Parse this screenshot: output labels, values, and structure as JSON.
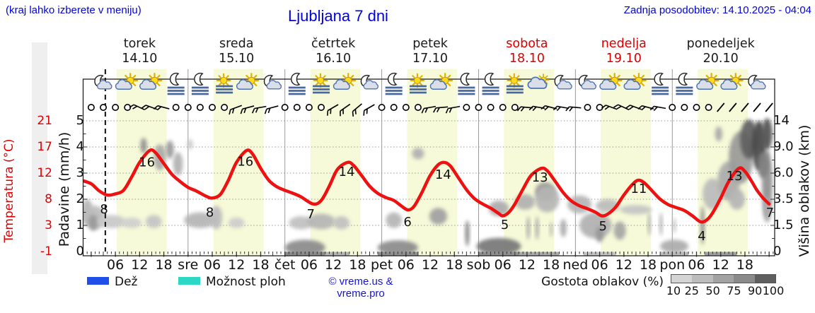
{
  "header": {
    "hint": "(kraj lahko izberete v meniju)",
    "title": "Ljubljana 7 dni",
    "updated": "Zadnja posodobitev: 14.10.2025 - 04:04"
  },
  "days": [
    {
      "name": "torek",
      "date": "14.10",
      "color": "#1a1a1a"
    },
    {
      "name": "sreda",
      "date": "15.10",
      "color": "#1a1a1a"
    },
    {
      "name": "četrtek",
      "date": "16.10",
      "color": "#1a1a1a"
    },
    {
      "name": "petek",
      "date": "17.10",
      "color": "#1a1a1a"
    },
    {
      "name": "sobota",
      "date": "18.10",
      "color": "#dd0000"
    },
    {
      "name": "nedelja",
      "date": "19.10",
      "color": "#dd0000"
    },
    {
      "name": "ponedeljek",
      "date": "20.10",
      "color": "#1a1a1a"
    }
  ],
  "axes": {
    "temperature": {
      "label": "Temperatura (°C)",
      "ticks": [
        "21",
        "17",
        "12",
        "8",
        "3",
        "-1"
      ],
      "color": "#e00000"
    },
    "precipitation": {
      "label": "Padavine (mm/h)",
      "ticks": [
        "5",
        "4",
        "3",
        "2",
        "1",
        "0"
      ]
    },
    "cloud_height": {
      "label": "Višina oblakov (km)",
      "ticks": [
        "14",
        "9.0",
        "6.0",
        "3.5",
        "1.5",
        "0"
      ]
    },
    "time_hours": [
      "06",
      "12",
      "18"
    ],
    "midnight_labels": [
      "sre",
      "čet",
      "pet",
      "sob",
      "ned",
      "pon"
    ],
    "time_ticks": [
      "06",
      "12",
      "18",
      "sre",
      "06",
      "12",
      "18",
      "čet",
      "06",
      "12",
      "18",
      "pet",
      "06",
      "12",
      "18",
      "sob",
      "06",
      "12",
      "18",
      "ned",
      "06",
      "12",
      "18",
      "pon",
      "06",
      "12",
      "18"
    ]
  },
  "legend": {
    "rain_label": "Dež",
    "rain_color": "#1f4fe8",
    "showers_label": "Možnost ploh",
    "showers_color": "#2cd8c4",
    "copyright": "© vreme.us & vreme.pro",
    "density_label": "Gostota oblakov (%)",
    "density_ticks": [
      "10",
      "25",
      "50",
      "75",
      "90",
      "100"
    ],
    "density_colors": [
      "#d4d4d4",
      "#bcbcbc",
      "#a2a2a2",
      "#8a8a8a",
      "#5f5f5f"
    ]
  },
  "chart_data": {
    "type": "line",
    "title": "Ljubljana 7 dni meteogram",
    "x_unit": "hours from torek 14.10 00:00",
    "xlim": [
      -2,
      169.3
    ],
    "ylim_precip": [
      0,
      5
    ],
    "temp_axis_map": "T_celsius = -1 + 4.4 * precip_axis_units",
    "daylight_hours": [
      6.3,
      18.7
    ],
    "now_line_t": 3.5,
    "grid": true,
    "temperature_curve": [
      [
        -2,
        10.9
      ],
      [
        0,
        10.4
      ],
      [
        2,
        9.2
      ],
      [
        4,
        8.5
      ],
      [
        6,
        8.7
      ],
      [
        8,
        9.3
      ],
      [
        10,
        11.5
      ],
      [
        12,
        14
      ],
      [
        14.5,
        16
      ],
      [
        16,
        15.6
      ],
      [
        18,
        13.8
      ],
      [
        20,
        12
      ],
      [
        22,
        10.8
      ],
      [
        24,
        9.8
      ],
      [
        26,
        9.2
      ],
      [
        28.5,
        8.3
      ],
      [
        30,
        8.0
      ],
      [
        32,
        8.6
      ],
      [
        34,
        11
      ],
      [
        36,
        14
      ],
      [
        38.5,
        16
      ],
      [
        40,
        15.4
      ],
      [
        42,
        13
      ],
      [
        44,
        11
      ],
      [
        46,
        9.9
      ],
      [
        48,
        9.3
      ],
      [
        50,
        8.8
      ],
      [
        52,
        8.2
      ],
      [
        55,
        7.0
      ],
      [
        57,
        7.6
      ],
      [
        59,
        10
      ],
      [
        61,
        12.8
      ],
      [
        63.5,
        14
      ],
      [
        65,
        13.5
      ],
      [
        67,
        11.8
      ],
      [
        69,
        10
      ],
      [
        71,
        8.8
      ],
      [
        73,
        8.1
      ],
      [
        75,
        7.6
      ],
      [
        77,
        6.6
      ],
      [
        78.5,
        6.0
      ],
      [
        80,
        6.6
      ],
      [
        82,
        9
      ],
      [
        84,
        11.8
      ],
      [
        86,
        13.6
      ],
      [
        87.5,
        14
      ],
      [
        89,
        13.4
      ],
      [
        91,
        11.4
      ],
      [
        93,
        9.4
      ],
      [
        95,
        7.9
      ],
      [
        97,
        7.0
      ],
      [
        99,
        6.3
      ],
      [
        101,
        5.4
      ],
      [
        102,
        5.0
      ],
      [
        103.5,
        5.6
      ],
      [
        105,
        7
      ],
      [
        107,
        9.5
      ],
      [
        109,
        11.8
      ],
      [
        111.5,
        13
      ],
      [
        113,
        12.6
      ],
      [
        115,
        10.8
      ],
      [
        117,
        8.9
      ],
      [
        119,
        7.5
      ],
      [
        121,
        6.7
      ],
      [
        123,
        6.2
      ],
      [
        125,
        5.6
      ],
      [
        126.5,
        5.0
      ],
      [
        128,
        5.3
      ],
      [
        130,
        6.5
      ],
      [
        132,
        8.5
      ],
      [
        134,
        10.2
      ],
      [
        135.5,
        11
      ],
      [
        137,
        10.6
      ],
      [
        139,
        9.2
      ],
      [
        141,
        7.8
      ],
      [
        143,
        6.9
      ],
      [
        145,
        6.4
      ],
      [
        147,
        5.9
      ],
      [
        149,
        5.0
      ],
      [
        151,
        4.0
      ],
      [
        152.5,
        4.3
      ],
      [
        154,
        5.5
      ],
      [
        156,
        8
      ],
      [
        158,
        10.8
      ],
      [
        160.5,
        13
      ],
      [
        162,
        12.5
      ],
      [
        163.5,
        11
      ],
      [
        165,
        9.3
      ],
      [
        166.5,
        8.0
      ],
      [
        168,
        7.0
      ]
    ],
    "temp_point_labels": [
      {
        "t": 3.2,
        "v": 1.62,
        "text": "8"
      },
      {
        "t": 13.8,
        "v": 3.42,
        "text": "16"
      },
      {
        "t": 29.4,
        "v": 1.5,
        "text": "16_low_8",
        "label": "8"
      },
      {
        "t": 38.2,
        "v": 3.45,
        "text": "16"
      },
      {
        "t": 54.4,
        "v": 1.43,
        "text": "7"
      },
      {
        "t": 63.3,
        "v": 3.05,
        "text": "14"
      },
      {
        "t": 78.4,
        "v": 1.14,
        "text": "6"
      },
      {
        "t": 87.2,
        "v": 2.95,
        "text": "14"
      },
      {
        "t": 102.5,
        "v": 1.03,
        "text": "5"
      },
      {
        "t": 111.2,
        "v": 2.84,
        "text": "13"
      },
      {
        "t": 126.8,
        "v": 0.97,
        "text": "5"
      },
      {
        "t": 135.7,
        "v": 2.4,
        "text": "11"
      },
      {
        "t": 151.3,
        "v": 0.6,
        "text": "4"
      },
      {
        "t": 159.4,
        "v": 2.89,
        "text": "13"
      },
      {
        "t": 168.2,
        "v": 1.48,
        "text": "7"
      }
    ],
    "weather_icons": [
      {
        "t": 3,
        "type": "moon-cloud"
      },
      {
        "t": 9,
        "type": "sun-cloud"
      },
      {
        "t": 15,
        "type": "sun-cloud"
      },
      {
        "t": 21,
        "type": "moon-fog"
      },
      {
        "t": 27,
        "type": "moon-fog"
      },
      {
        "t": 33,
        "type": "sun-fog"
      },
      {
        "t": 39,
        "type": "sun-cloud"
      },
      {
        "t": 45,
        "type": "moon-cloud"
      },
      {
        "t": 51,
        "type": "moon-fog"
      },
      {
        "t": 57,
        "type": "sun-fog"
      },
      {
        "t": 63,
        "type": "sun-cloud"
      },
      {
        "t": 69,
        "type": "moon-cloud"
      },
      {
        "t": 75,
        "type": "moon-fog"
      },
      {
        "t": 81,
        "type": "sun-fog"
      },
      {
        "t": 87,
        "type": "sun-cloud"
      },
      {
        "t": 93,
        "type": "moon-fog"
      },
      {
        "t": 99,
        "type": "moon-fog"
      },
      {
        "t": 105,
        "type": "sun-fog"
      },
      {
        "t": 111,
        "type": "cloud-sun"
      },
      {
        "t": 117,
        "type": "moon-cloud"
      },
      {
        "t": 123,
        "type": "moon-cloud"
      },
      {
        "t": 129,
        "type": "sun-cloud"
      },
      {
        "t": 135,
        "type": "sun-cloud"
      },
      {
        "t": 141,
        "type": "moon-fog"
      },
      {
        "t": 147,
        "type": "moon-fog"
      },
      {
        "t": 153,
        "type": "sun-cloud"
      },
      {
        "t": 159,
        "type": "sun-cloud"
      },
      {
        "t": 165,
        "type": "moon-cloud"
      }
    ],
    "wind_symbols": [
      [
        0,
        "o",
        0
      ],
      [
        3,
        "o",
        0
      ],
      [
        6,
        "o",
        0
      ],
      [
        9,
        "o",
        0
      ],
      [
        12,
        "b",
        205
      ],
      [
        15,
        "b",
        200
      ],
      [
        18,
        "b",
        195
      ],
      [
        21,
        "o",
        0
      ],
      [
        24,
        "o",
        0
      ],
      [
        27,
        "o",
        0
      ],
      [
        30,
        "o",
        0
      ],
      [
        33,
        "o",
        0
      ],
      [
        36,
        "b",
        160
      ],
      [
        39,
        "b",
        165
      ],
      [
        42,
        "b",
        170
      ],
      [
        45,
        "b",
        165
      ],
      [
        48,
        "o",
        0
      ],
      [
        51,
        "o",
        0
      ],
      [
        54,
        "o",
        0
      ],
      [
        57,
        "o",
        0
      ],
      [
        60,
        "b",
        150
      ],
      [
        63,
        "b",
        145
      ],
      [
        66,
        "b",
        140
      ],
      [
        69,
        "b",
        150
      ],
      [
        72,
        "o",
        0
      ],
      [
        75,
        "o",
        0
      ],
      [
        78,
        "o",
        0
      ],
      [
        81,
        "o",
        0
      ],
      [
        84,
        "b",
        170
      ],
      [
        87,
        "b",
        175
      ],
      [
        90,
        "b",
        170
      ],
      [
        93,
        "o",
        0
      ],
      [
        96,
        "o",
        0
      ],
      [
        99,
        "o",
        0
      ],
      [
        102,
        "o",
        0
      ],
      [
        105,
        "o",
        0
      ],
      [
        108,
        "b",
        185
      ],
      [
        111,
        "b",
        190
      ],
      [
        114,
        "b",
        195
      ],
      [
        117,
        "b",
        190
      ],
      [
        120,
        "b",
        185
      ],
      [
        123,
        "o",
        0
      ],
      [
        126,
        "o",
        0
      ],
      [
        129,
        "b",
        200
      ],
      [
        132,
        "b",
        205
      ],
      [
        135,
        "b",
        200
      ],
      [
        138,
        "b",
        195
      ],
      [
        141,
        "b",
        190
      ],
      [
        144,
        "o",
        0
      ],
      [
        147,
        "o",
        0
      ],
      [
        150,
        "o",
        0
      ],
      [
        153,
        "o",
        0
      ],
      [
        156,
        "s",
        0
      ],
      [
        159,
        "s",
        0
      ],
      [
        162,
        "s",
        0
      ],
      [
        165,
        "s",
        0
      ],
      [
        168,
        "s",
        0
      ]
    ],
    "clouds": [
      [
        -1,
        1.5,
        1.5,
        0.5,
        "#b5b5b5"
      ],
      [
        1,
        1.3,
        2.5,
        0.45,
        "#bbbbbb"
      ],
      [
        0.5,
        1.1,
        1.2,
        0.3,
        "#9a9a9a"
      ],
      [
        5,
        1.15,
        3.5,
        0.25,
        "#c8c8c8"
      ],
      [
        10,
        1.1,
        2.5,
        0.2,
        "#cfcfcf"
      ],
      [
        15.5,
        1.15,
        2,
        0.25,
        "#c4c4c4"
      ],
      [
        13,
        4.05,
        0.8,
        0.3,
        "#909090"
      ],
      [
        17,
        3.6,
        1.5,
        0.5,
        "#a8a8a8"
      ],
      [
        19.5,
        3.9,
        1,
        0.35,
        "#9a9a9a"
      ],
      [
        21.5,
        3.35,
        1.2,
        0.45,
        "#b0b0b0"
      ],
      [
        24.5,
        4.1,
        0.7,
        0.2,
        "#c8c8c8"
      ],
      [
        27,
        1.2,
        4,
        0.3,
        "#b5b5b5"
      ],
      [
        31,
        1.3,
        1.5,
        0.45,
        "#bbbbbb"
      ],
      [
        36,
        1.1,
        2,
        0.2,
        "#cccccc"
      ],
      [
        52,
        1.1,
        3,
        0.25,
        "#c0c0c0"
      ],
      [
        57,
        1.15,
        3.5,
        0.3,
        "#b5b5b5"
      ],
      [
        62,
        1.1,
        2,
        0.25,
        "#c0c0c0"
      ],
      [
        53,
        0.15,
        5,
        0.3,
        "#8a8a8a"
      ],
      [
        81,
        3.75,
        1.5,
        0.22,
        "#b0b0b0"
      ],
      [
        75,
        1.2,
        2,
        0.3,
        "#b5b5b5"
      ],
      [
        86,
        1.35,
        2.2,
        0.32,
        "#a0a0a0"
      ],
      [
        76,
        0.15,
        5,
        0.28,
        "#8a8a8a"
      ],
      [
        93.2,
        0.7,
        0.5,
        0.5,
        "#787878"
      ],
      [
        101,
        1.65,
        2.5,
        0.3,
        "#ababab"
      ],
      [
        107.5,
        1.9,
        2.5,
        0.3,
        "#b0b0b0"
      ],
      [
        112.5,
        2.3,
        2.5,
        0.35,
        "#969696"
      ],
      [
        113,
        2.0,
        3,
        0.5,
        "#b5b5b5"
      ],
      [
        101,
        0.2,
        5.5,
        0.32,
        "#777777"
      ],
      [
        108.3,
        0.9,
        0.4,
        0.45,
        "#a0a0a0"
      ],
      [
        110.5,
        0.9,
        0.4,
        0.45,
        "#a0a0a0"
      ],
      [
        114,
        0.85,
        0.35,
        0.3,
        "#b0b0b0"
      ],
      [
        117,
        0.9,
        0.8,
        0.35,
        "#ababab"
      ],
      [
        121,
        1.8,
        3,
        0.35,
        "#b5b5b5"
      ],
      [
        125,
        1.0,
        4,
        0.5,
        "#b0b0b0"
      ],
      [
        126,
        0.65,
        1,
        0.3,
        "#969696"
      ],
      [
        131,
        0.8,
        1.5,
        0.35,
        "#a5a5a5"
      ],
      [
        128,
        1.75,
        3,
        0.25,
        "#bbbbbb"
      ],
      [
        135,
        1.6,
        4,
        0.18,
        "#c4c4c4"
      ],
      [
        138.3,
        1.05,
        0.35,
        0.45,
        "#a5a5a5"
      ],
      [
        141.2,
        1.05,
        0.35,
        0.45,
        "#a5a5a5"
      ],
      [
        144.5,
        0.2,
        3.5,
        0.25,
        "#ababab"
      ],
      [
        144.5,
        1.0,
        0.4,
        0.3,
        "#c0c0c0"
      ],
      [
        151.5,
        1.0,
        0.45,
        0.75,
        "#808080"
      ],
      [
        154,
        2.2,
        2.5,
        0.6,
        "#bbbbbb"
      ],
      [
        158,
        2.7,
        2.8,
        0.75,
        "#ababab"
      ],
      [
        155.5,
        4.5,
        0.9,
        0.28,
        "#a8a8a8"
      ],
      [
        161,
        3.6,
        3,
        1.0,
        "#999999"
      ],
      [
        163,
        4.3,
        2.2,
        0.75,
        "#5e5e5e"
      ],
      [
        165.5,
        4.05,
        1.8,
        0.95,
        "#4a4a4a"
      ],
      [
        167.5,
        4.5,
        1.3,
        0.6,
        "#525252"
      ],
      [
        167.5,
        2.6,
        1.3,
        1.3,
        "#909090"
      ],
      [
        166.5,
        3.3,
        1.4,
        0.5,
        "#808080"
      ],
      [
        167.5,
        1.6,
        1,
        0.5,
        "#ababab"
      ],
      [
        160,
        2.0,
        2,
        0.4,
        "#b5b5b5"
      ]
    ],
    "fog_strip": [
      [
        48,
        58,
        "#8a8a8a"
      ],
      [
        58,
        64,
        "#b5b5b5"
      ],
      [
        71,
        81,
        "#8f8f8f"
      ],
      [
        96,
        111,
        "#909090"
      ],
      [
        106,
        116,
        "#ababab"
      ],
      [
        122,
        130,
        "#c4c4c4"
      ],
      [
        141,
        148,
        "#bbbbbb"
      ],
      [
        152,
        160,
        "#a0a0a0"
      ]
    ],
    "colors": {
      "temp_curve": "#ee1111",
      "day_band": "#f6fad8",
      "grid": "#999999",
      "frame": "#222222"
    }
  }
}
